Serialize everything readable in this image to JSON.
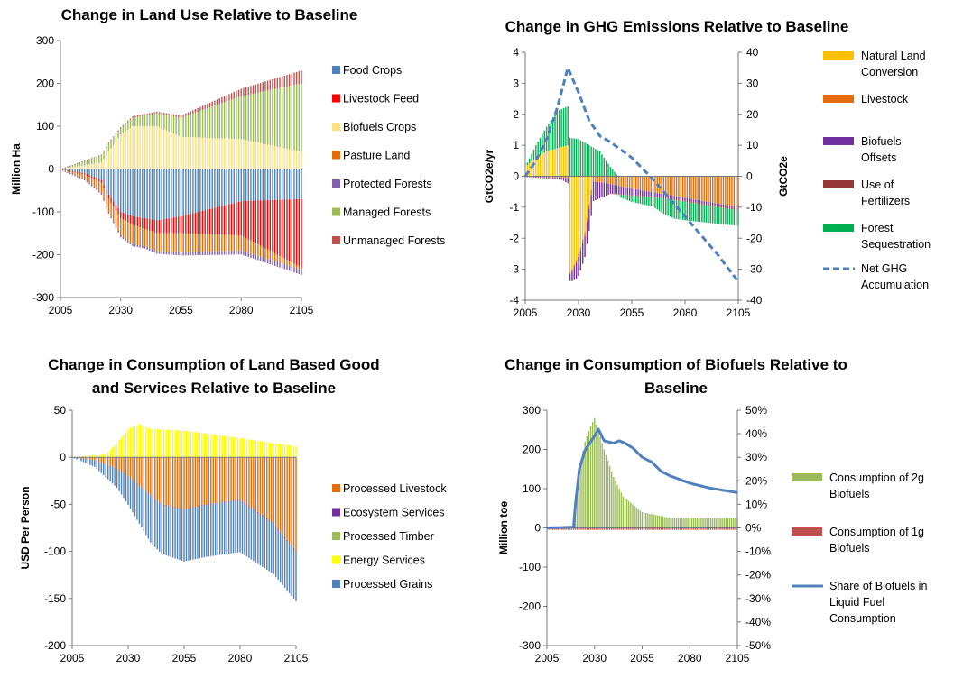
{
  "chart_data": [
    {
      "type": "bar",
      "stacked": true,
      "title": "Change in Land Use Relative to Baseline",
      "ylabel": "Million Ha",
      "xlim": [
        2005,
        2105
      ],
      "ylim": [
        -300,
        300
      ],
      "x_ticks": [
        "2005",
        "2030",
        "2055",
        "2080",
        "2105"
      ],
      "y_ticks": [
        "300",
        "200",
        "100",
        "0",
        "-100",
        "-200",
        "-300"
      ],
      "grid": false,
      "legend_position": "right",
      "series": [
        {
          "name": "Food Crops",
          "color": "#4f81bd",
          "x": [
            2005,
            2015,
            2022,
            2025,
            2030,
            2035,
            2040,
            2045,
            2055,
            2080,
            2105
          ],
          "y": [
            0,
            -10,
            -25,
            -60,
            -100,
            -110,
            -115,
            -120,
            -110,
            -75,
            -70
          ]
        },
        {
          "name": "Livestock Feed",
          "color": "#ff0000",
          "x": [
            2005,
            2020,
            2030,
            2045,
            2055,
            2080,
            2105
          ],
          "y": [
            0,
            -5,
            -15,
            -30,
            -40,
            -80,
            -160
          ]
        },
        {
          "name": "Biofuels Crops",
          "color": "#ffe080",
          "x": [
            2005,
            2022,
            2025,
            2030,
            2035,
            2045,
            2055,
            2080,
            2105
          ],
          "y": [
            0,
            15,
            40,
            80,
            100,
            100,
            75,
            70,
            40
          ]
        },
        {
          "name": "Pasture Land",
          "color": "#e36c09",
          "x": [
            2005,
            2015,
            2025,
            2030,
            2035,
            2040,
            2055,
            2080,
            2105
          ],
          "y": [
            0,
            -10,
            -30,
            -40,
            -45,
            -40,
            -45,
            -35,
            -5
          ]
        },
        {
          "name": "Protected Forests",
          "color": "#7f5fae",
          "x": [
            2005,
            2105
          ],
          "y": [
            -2,
            -12
          ]
        },
        {
          "name": "Managed Forests",
          "color": "#9bbb59",
          "x": [
            2005,
            2015,
            2025,
            2030,
            2035,
            2045,
            2055,
            2080,
            2105
          ],
          "y": [
            0,
            10,
            20,
            15,
            20,
            30,
            45,
            100,
            160
          ]
        },
        {
          "name": "Unmanaged Forests",
          "color": "#c0504d",
          "x": [
            2005,
            2055,
            2105
          ],
          "y": [
            0,
            5,
            30
          ]
        }
      ]
    },
    {
      "type": "bar",
      "stacked": true,
      "title": "Change in GHG Emissions Relative to Baseline",
      "ylabel": "GtCO2e/yr",
      "y2label": "GtCO2e",
      "xlim": [
        2005,
        2105
      ],
      "ylim": [
        -4,
        4
      ],
      "y2lim": [
        -40,
        40
      ],
      "x_ticks": [
        "2005",
        "2030",
        "2055",
        "2080",
        "2105"
      ],
      "y_ticks": [
        "4",
        "3",
        "2",
        "1",
        "0",
        "-1",
        "-2",
        "-3",
        "-4"
      ],
      "y2_ticks": [
        "40",
        "30",
        "20",
        "10",
        "0",
        "-10",
        "-20",
        "-30",
        "-40"
      ],
      "grid": false,
      "legend_position": "right",
      "series": [
        {
          "name": "Natural Land Conversion",
          "legend_lines": [
            "Natural Land",
            "Conversion"
          ],
          "color": "#ffc000",
          "x": [
            2005,
            2010,
            2015,
            2020,
            2025,
            2026,
            2027,
            2029,
            2031,
            2033,
            2035,
            2037
          ],
          "y": [
            0.3,
            0.6,
            0.8,
            0.9,
            1.0,
            -3.1,
            -3.0,
            -2.7,
            -2.3,
            -1.8,
            -0.9,
            0
          ]
        },
        {
          "name": "Livestock",
          "legend_lines": [
            "Livestock"
          ],
          "color": "#e46c0a",
          "x": [
            2005,
            2025,
            2030,
            2045,
            2055,
            2080,
            2105
          ],
          "y": [
            0,
            -0.05,
            -0.1,
            -0.25,
            -0.4,
            -0.7,
            -1.0
          ]
        },
        {
          "name": "Biofuels Offsets",
          "legend_lines": [
            "Biofuels",
            "Offsets"
          ],
          "color": "#7030a0",
          "x": [
            2005,
            2022,
            2026,
            2030,
            2035,
            2040,
            2045,
            2055,
            2070,
            2105
          ],
          "y": [
            0,
            -0.05,
            -0.2,
            -0.6,
            -0.7,
            -0.5,
            -0.3,
            -0.2,
            -0.1,
            -0.05
          ]
        },
        {
          "name": "Use of Fertilizers",
          "legend_lines": [
            "Use of",
            "Fertilizers"
          ],
          "color": "#953735",
          "x": [
            2005,
            2105
          ],
          "y": [
            0,
            -0.05
          ]
        },
        {
          "name": "Forest Sequestration",
          "legend_lines": [
            "Forest",
            "Sequestration"
          ],
          "color": "#00b050",
          "x": [
            2005,
            2015,
            2020,
            2025,
            2030,
            2040,
            2045,
            2050,
            2055,
            2065,
            2070,
            2075,
            2080,
            2105
          ],
          "y": [
            0,
            0.8,
            1.2,
            1.25,
            1.2,
            0.8,
            0.3,
            -0.1,
            -0.2,
            -0.3,
            -0.5,
            -0.6,
            -0.6,
            -0.5
          ]
        },
        {
          "name": "Net GHG Accumulation",
          "legend_lines": [
            "Net GHG",
            "Accumulation"
          ],
          "color": "#4f81bd",
          "style": "dashed-line",
          "axis": "secondary",
          "x": [
            2005,
            2010,
            2015,
            2020,
            2025,
            2030,
            2035,
            2040,
            2045,
            2055,
            2065,
            2075,
            2085,
            2095,
            2105
          ],
          "y": [
            0,
            5,
            12,
            22,
            35,
            27,
            18,
            13,
            11,
            6,
            -1,
            -9,
            -17,
            -25,
            -34
          ]
        }
      ]
    },
    {
      "type": "bar",
      "stacked": true,
      "title": "Change in Consumption of Land Based Good and Services Relative to Baseline",
      "title_lines": [
        "Change in Consumption of Land Based Good",
        "and Services Relative to Baseline"
      ],
      "ylabel": "USD Per Person",
      "xlim": [
        2005,
        2105
      ],
      "ylim": [
        -200,
        50
      ],
      "x_ticks": [
        "2005",
        "2030",
        "2055",
        "2080",
        "2105"
      ],
      "y_ticks": [
        "50",
        "0",
        "-50",
        "-100",
        "-150",
        "-200"
      ],
      "grid": false,
      "legend_position": "right",
      "series": [
        {
          "name": "Processed Livestock",
          "color": "#e46c0a",
          "x": [
            2005,
            2015,
            2025,
            2030,
            2035,
            2040,
            2045,
            2055,
            2065,
            2080,
            2095,
            2105
          ],
          "y": [
            0,
            -3,
            -12,
            -20,
            -30,
            -40,
            -50,
            -55,
            -50,
            -45,
            -70,
            -100
          ]
        },
        {
          "name": "Ecosystem Services",
          "color": "#7030a0",
          "x": [
            2005,
            2030,
            2105
          ],
          "y": [
            0,
            -0.5,
            -1
          ]
        },
        {
          "name": "Processed Timber",
          "color": "#9bbb59",
          "x": [
            2005,
            2105
          ],
          "y": [
            0,
            0.5
          ]
        },
        {
          "name": "Energy Services",
          "color": "#ffff00",
          "x": [
            2005,
            2020,
            2025,
            2030,
            2035,
            2040,
            2055,
            2080,
            2105
          ],
          "y": [
            0,
            3,
            15,
            30,
            35,
            30,
            28,
            20,
            11
          ]
        },
        {
          "name": "Processed Grains",
          "color": "#4f81bd",
          "x": [
            2005,
            2015,
            2025,
            2030,
            2035,
            2040,
            2045,
            2055,
            2080,
            2105
          ],
          "y": [
            0,
            -7,
            -20,
            -30,
            -40,
            -50,
            -52,
            -55,
            -55,
            -52
          ]
        }
      ]
    },
    {
      "type": "bar",
      "stacked": true,
      "title": "Change in Consumption of Biofuels Relative to Baseline",
      "title_lines": [
        "Change in Consumption of Biofuels Relative to",
        "Baseline"
      ],
      "ylabel": "Million toe",
      "xlim": [
        2005,
        2105
      ],
      "ylim": [
        -300,
        300
      ],
      "y2lim": [
        -50,
        50
      ],
      "x_ticks": [
        "2005",
        "2030",
        "2055",
        "2080",
        "2105"
      ],
      "y_ticks": [
        "300",
        "200",
        "100",
        "0",
        "-100",
        "-200",
        "-300"
      ],
      "y2_ticks": [
        "50%",
        "40%",
        "30%",
        "20%",
        "10%",
        "0%",
        "-10%",
        "-20%",
        "-30%",
        "-40%",
        "-50%"
      ],
      "grid": false,
      "legend_position": "right",
      "series": [
        {
          "name": "Consumption of 2g Biofuels",
          "legend_lines": [
            "Consumption of 2g",
            "Biofuels"
          ],
          "color": "#9bbb59",
          "x": [
            2005,
            2018,
            2020,
            2022,
            2025,
            2028,
            2030,
            2035,
            2040,
            2045,
            2055,
            2070,
            2105
          ],
          "y": [
            0,
            0,
            60,
            150,
            220,
            260,
            280,
            200,
            130,
            80,
            40,
            25,
            25
          ]
        },
        {
          "name": "Consumption of 1g Biofuels",
          "legend_lines": [
            "Consumption of 1g",
            "Biofuels"
          ],
          "color": "#c0504d",
          "x": [
            2005,
            2105
          ],
          "y": [
            -5,
            -5
          ]
        },
        {
          "name": "Share of Biofuels in Liquid Fuel Consumption",
          "legend_lines": [
            "Share of Biofuels in",
            "Liquid Fuel",
            "Consumption"
          ],
          "color": "#4f81bd",
          "style": "line",
          "axis": "secondary",
          "x": [
            2005,
            2019,
            2020,
            2022,
            2025,
            2030,
            2032,
            2035,
            2040,
            2043,
            2046,
            2050,
            2055,
            2060,
            2065,
            2070,
            2080,
            2090,
            2105
          ],
          "y": [
            0,
            0.3,
            10,
            25,
            33,
            39,
            42,
            37,
            36,
            37,
            36,
            34,
            30,
            28,
            24,
            22,
            19,
            17,
            15
          ]
        }
      ]
    }
  ]
}
